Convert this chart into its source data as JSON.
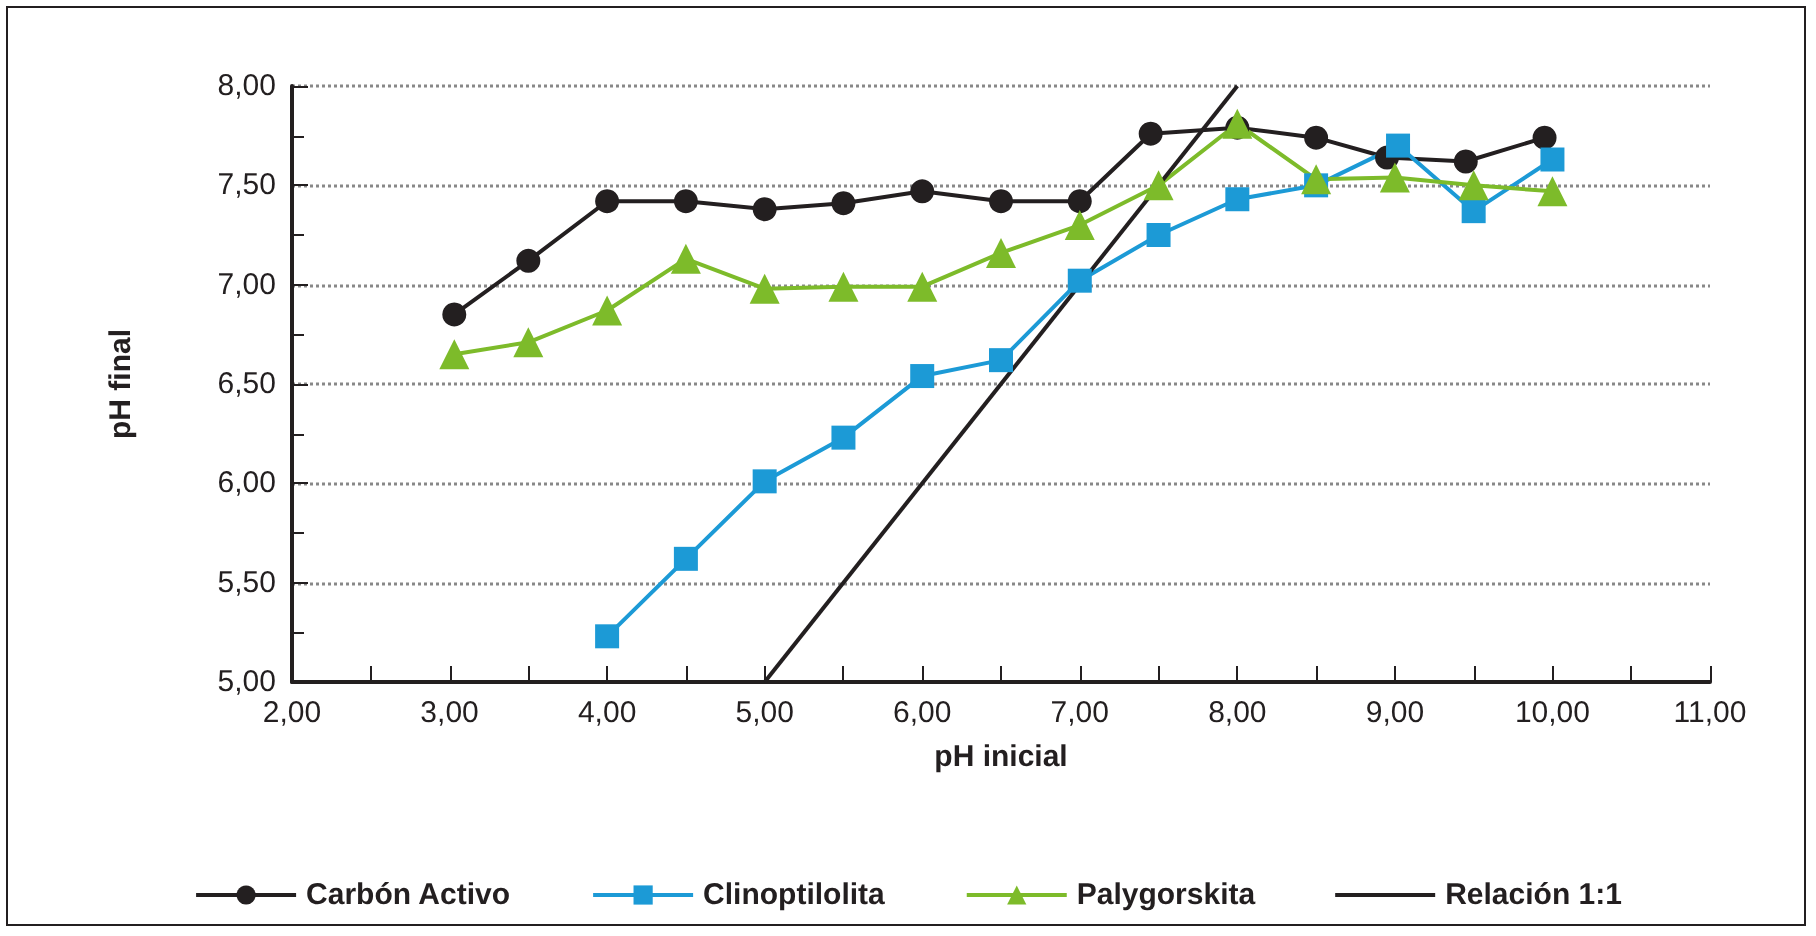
{
  "chart_data": {
    "type": "line",
    "xlabel": "pH inicial",
    "ylabel": "pH final",
    "xlim": [
      2,
      11
    ],
    "xticks": [
      {
        "value": 2,
        "label": "2,00"
      },
      {
        "value": 3,
        "label": "3,00"
      },
      {
        "value": 4,
        "label": "4,00"
      },
      {
        "value": 5,
        "label": "5,00"
      },
      {
        "value": 6,
        "label": "6,00"
      },
      {
        "value": 7,
        "label": "7,00"
      },
      {
        "value": 8,
        "label": "8,00"
      },
      {
        "value": 9,
        "label": "9,00"
      },
      {
        "value": 10,
        "label": "10,00"
      },
      {
        "value": 11,
        "label": "11,00"
      }
    ],
    "ylim": [
      5,
      8
    ],
    "yticks": [
      {
        "value": 5,
        "label": "5,00"
      },
      {
        "value": 5.5,
        "label": "5,50"
      },
      {
        "value": 6,
        "label": "6,00"
      },
      {
        "value": 6.5,
        "label": "6,50"
      },
      {
        "value": 7,
        "label": "7,00"
      },
      {
        "value": 7.5,
        "label": "7,50"
      },
      {
        "value": 8,
        "label": "8,00"
      }
    ],
    "grid": "y",
    "legend": "bottom",
    "line_style": "solid",
    "series": [
      {
        "name": "Carbón Activo",
        "color": "#231f20",
        "marker": "circle",
        "x": [
          3.03,
          3.5,
          4,
          4.5,
          5,
          5.5,
          6,
          6.5,
          7,
          7.45,
          8,
          8.5,
          8.95,
          9.45,
          9.95
        ],
        "values": [
          6.85,
          7.12,
          7.42,
          7.42,
          7.38,
          7.41,
          7.47,
          7.42,
          7.42,
          7.76,
          7.79,
          7.74,
          7.64,
          7.62,
          7.74
        ]
      },
      {
        "name": "Clinoptilolita",
        "color": "#1c9ad6",
        "marker": "square",
        "x": [
          4,
          4.5,
          5,
          5.5,
          6,
          6.5,
          7,
          7.5,
          8,
          8.5,
          9.02,
          9.5,
          10
        ],
        "values": [
          5.23,
          5.62,
          6.01,
          6.23,
          6.54,
          6.62,
          7.02,
          7.25,
          7.43,
          7.5,
          7.7,
          7.37,
          7.63
        ]
      },
      {
        "name": "Palygorskita",
        "color": "#7dbb2a",
        "marker": "triangle",
        "x": [
          3.03,
          3.5,
          4,
          4.5,
          5,
          5.5,
          6,
          6.5,
          7,
          7.5,
          8,
          8.5,
          9,
          9.5,
          10
        ],
        "values": [
          6.65,
          6.71,
          6.87,
          7.13,
          6.98,
          6.99,
          6.99,
          7.16,
          7.3,
          7.5,
          7.81,
          7.53,
          7.54,
          7.5,
          7.47
        ]
      },
      {
        "name": "Relación 1:1",
        "color": "#231f20",
        "marker": "none",
        "x": [
          5,
          8
        ],
        "values": [
          5,
          8
        ]
      }
    ]
  }
}
